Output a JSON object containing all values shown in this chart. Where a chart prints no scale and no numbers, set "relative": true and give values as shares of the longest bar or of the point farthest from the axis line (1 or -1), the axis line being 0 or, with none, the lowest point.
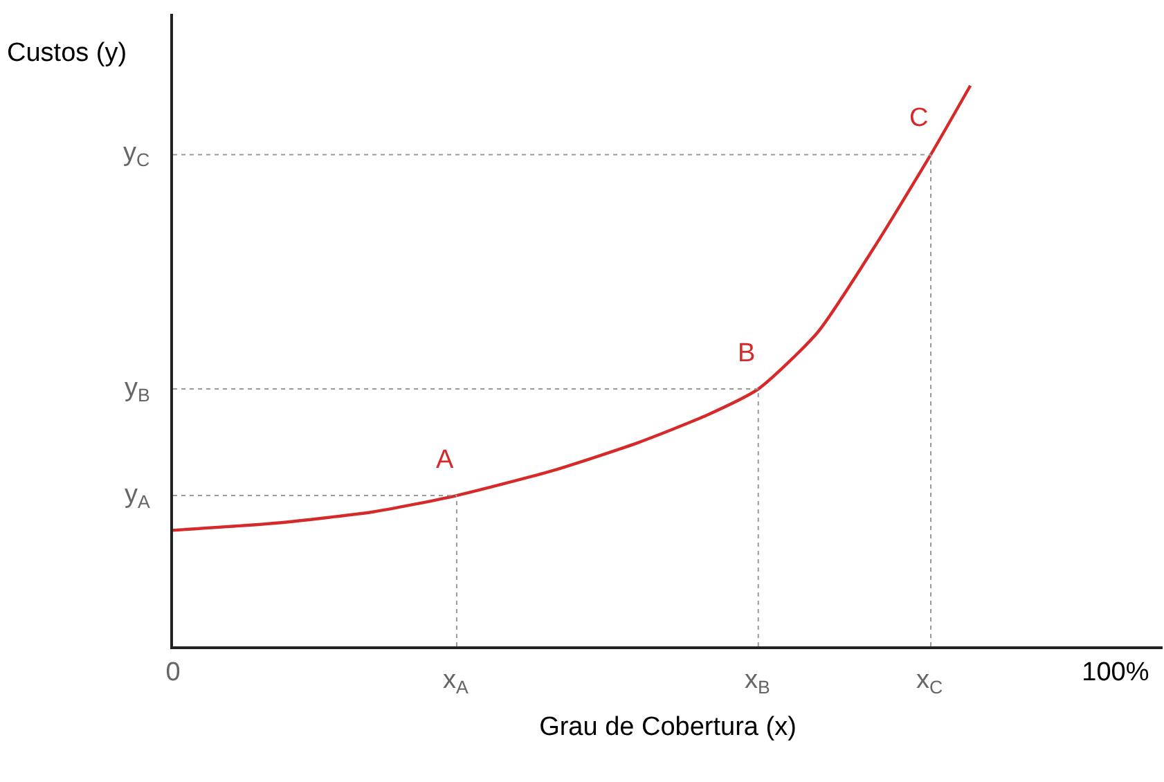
{
  "chart_data": {
    "type": "line",
    "relative": true,
    "xlabel": "Grau de Cobertura (x)",
    "ylabel": "Custos (y)",
    "x": [
      0,
      11,
      21.3,
      30.1,
      40.4,
      49.3,
      56.6,
      62.1,
      68.4,
      74.3,
      80.4,
      84.6
    ],
    "series": [
      {
        "color": "#d62a2a",
        "values": [
          0.207,
          0.22,
          0.24,
          0.269,
          0.314,
          0.363,
          0.412,
          0.459,
          0.56,
          0.709,
          0.877,
          1.0
        ]
      }
    ],
    "xlim": [
      0,
      105
    ],
    "xticks": [
      0,
      {
        "value": 100,
        "label": "100%"
      }
    ],
    "ref_lines": [
      {
        "axis": "x",
        "value": 30.1,
        "label": "x$_{A}$",
        "color": "#999999",
        "line_style": "dotted"
      },
      {
        "axis": "x",
        "value": 62.1,
        "label": "x$_{B}$",
        "color": "#999999",
        "line_style": "dotted"
      },
      {
        "axis": "x",
        "value": 80.4,
        "label": "x$_{C}$",
        "color": "#999999",
        "line_style": "dotted"
      },
      {
        "axis": "y",
        "value": 0.269,
        "label": "y$_{A}$",
        "color": "#999999",
        "line_style": "dotted"
      },
      {
        "axis": "y",
        "value": 0.459,
        "label": "y$_{B}$",
        "color": "#999999",
        "line_style": "dotted"
      },
      {
        "axis": "y",
        "value": 0.877,
        "label": "y$_{C}$",
        "color": "#999999",
        "line_style": "dotted"
      }
    ],
    "annotations": [
      {
        "text": "A",
        "x": 30.1,
        "y": 0.269
      },
      {
        "text": "B",
        "x": 62.1,
        "y": 0.459
      },
      {
        "text": "C",
        "x": 80.4,
        "y": 0.877
      }
    ],
    "line_style": "solid"
  }
}
